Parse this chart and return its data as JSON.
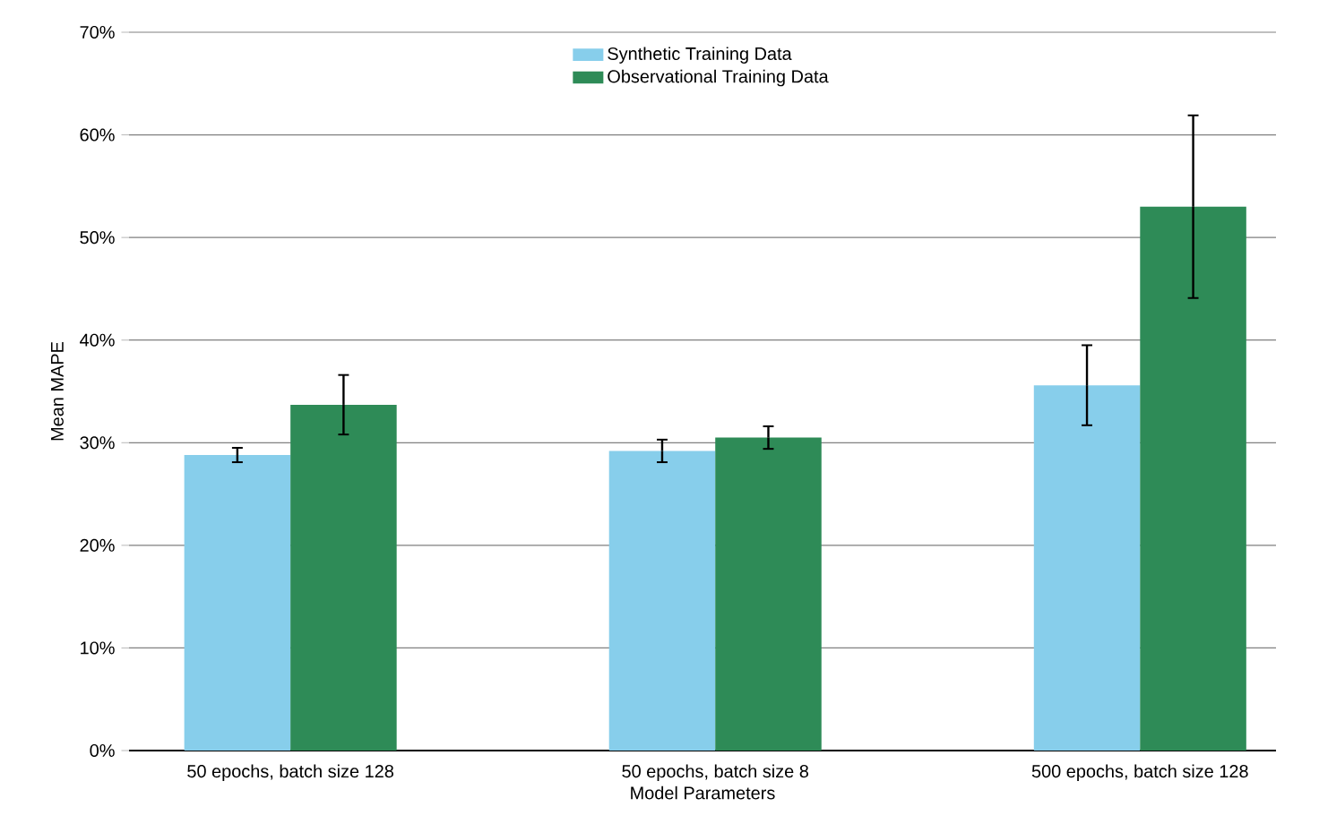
{
  "chart_data": {
    "type": "bar",
    "xlabel": "Model Parameters",
    "ylabel": "Mean MAPE",
    "categories": [
      "50 epochs, batch size 128",
      "50 epochs, batch size 8",
      "500 epochs, batch size 128"
    ],
    "series": [
      {
        "name": "Synthetic Training Data",
        "color": "#87ceeb",
        "values": [
          28.8,
          29.2,
          35.6
        ],
        "errors": [
          0.7,
          1.1,
          3.9
        ]
      },
      {
        "name": "Observational Training Data",
        "color": "#2e8b57",
        "values": [
          33.7,
          30.5,
          53.0
        ],
        "errors": [
          2.9,
          1.1,
          8.9
        ]
      }
    ],
    "ylim": [
      0,
      70
    ],
    "yticks": [
      {
        "value": 0,
        "label": "0%"
      },
      {
        "value": 10,
        "label": "10%"
      },
      {
        "value": 20,
        "label": "20%"
      },
      {
        "value": 30,
        "label": "30%"
      },
      {
        "value": 40,
        "label": "40%"
      },
      {
        "value": 50,
        "label": "50%"
      },
      {
        "value": 60,
        "label": "60%"
      },
      {
        "value": 70,
        "label": "70%"
      }
    ],
    "grid": "y",
    "legend": "top"
  }
}
